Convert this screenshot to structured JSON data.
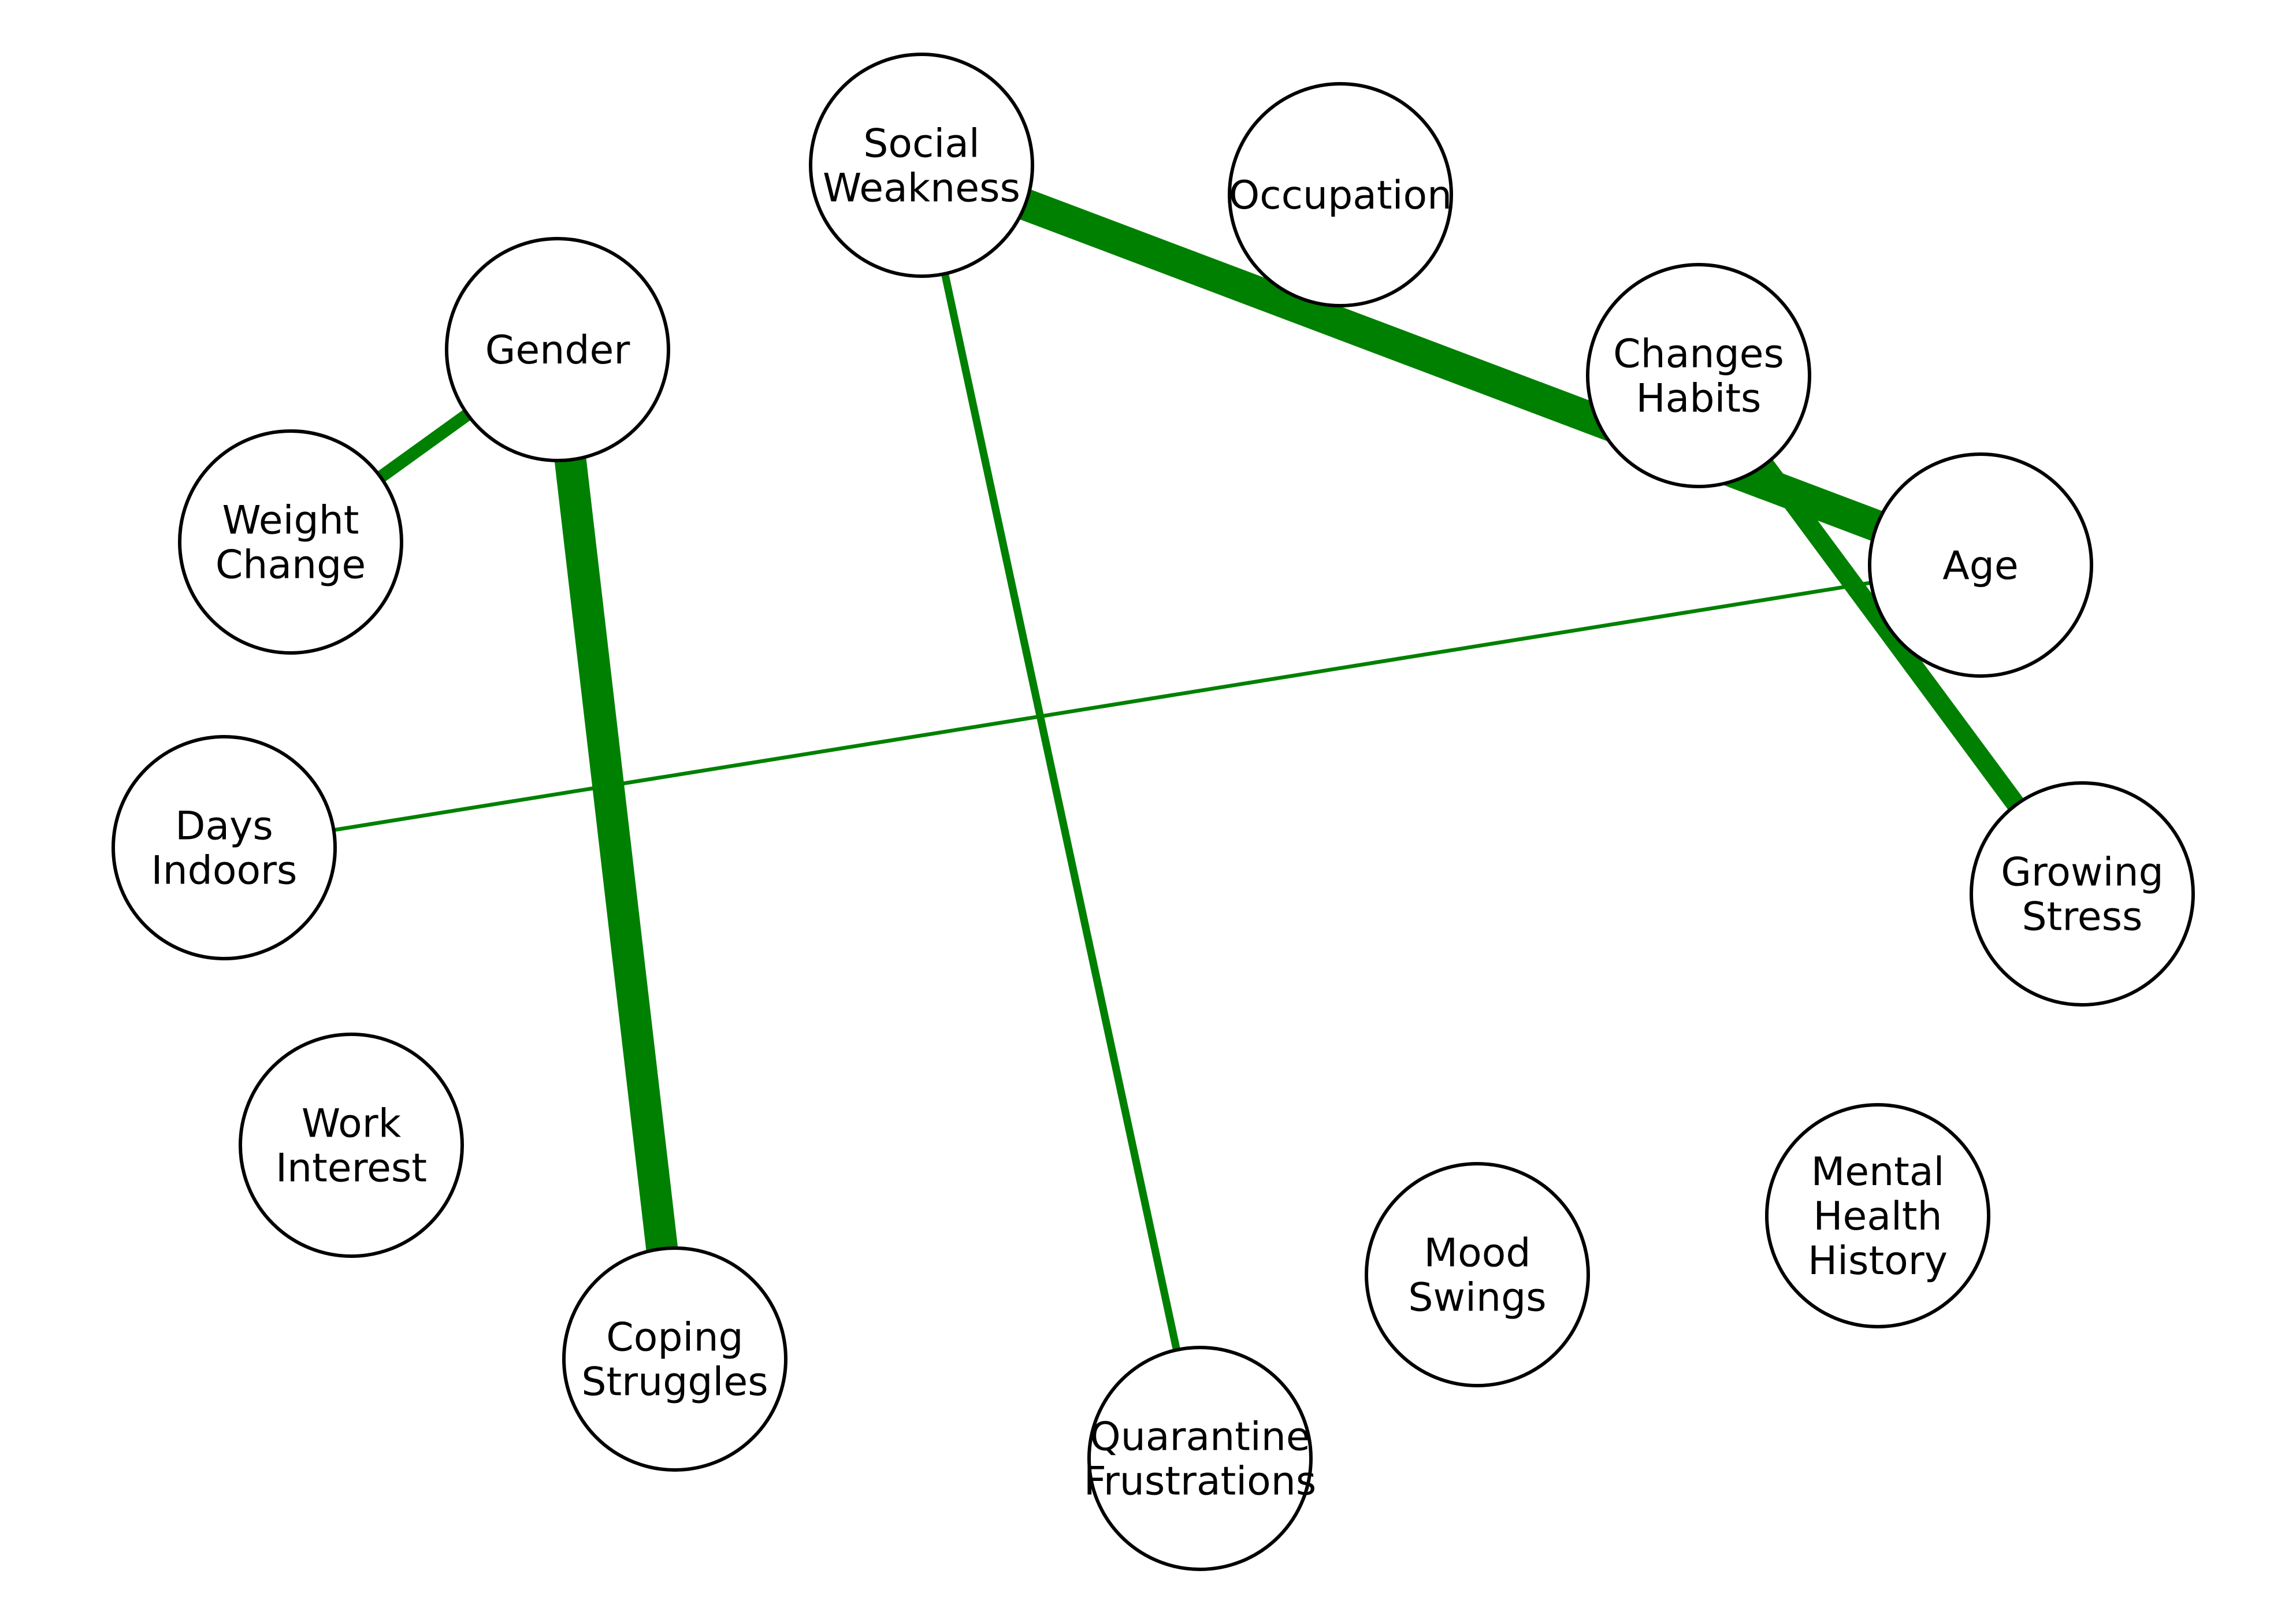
{
  "graph": {
    "edge_color": "#008000",
    "node_fill": "#ffffff",
    "node_stroke": "#000000",
    "nodes": [
      {
        "id": "social_weakness",
        "lines": [
          "Social",
          "Weakness"
        ]
      },
      {
        "id": "occupation",
        "lines": [
          "Occupation"
        ]
      },
      {
        "id": "gender",
        "lines": [
          "Gender"
        ]
      },
      {
        "id": "changes_habits",
        "lines": [
          "Changes",
          "Habits"
        ]
      },
      {
        "id": "weight_change",
        "lines": [
          "Weight",
          "Change"
        ]
      },
      {
        "id": "age",
        "lines": [
          "Age"
        ]
      },
      {
        "id": "days_indoors",
        "lines": [
          "Days",
          "Indoors"
        ]
      },
      {
        "id": "growing_stress",
        "lines": [
          "Growing",
          "Stress"
        ]
      },
      {
        "id": "work_interest",
        "lines": [
          "Work",
          "Interest"
        ]
      },
      {
        "id": "mental_health_history",
        "lines": [
          "Mental",
          "Health",
          "History"
        ]
      },
      {
        "id": "mood_swings",
        "lines": [
          "Mood",
          "Swings"
        ]
      },
      {
        "id": "coping_struggles",
        "lines": [
          "Coping",
          "Struggles"
        ]
      },
      {
        "id": "quarantine_frustrations",
        "lines": [
          "Quarantine",
          "Frustrations"
        ]
      }
    ],
    "edges": [
      {
        "source": "social_weakness",
        "target": "age",
        "weight": 5
      },
      {
        "source": "gender",
        "target": "coping_struggles",
        "weight": 5
      },
      {
        "source": "changes_habits",
        "target": "growing_stress",
        "weight": 3
      },
      {
        "source": "gender",
        "target": "weight_change",
        "weight": 2
      },
      {
        "source": "social_weakness",
        "target": "quarantine_frustrations",
        "weight": 1.2
      },
      {
        "source": "days_indoors",
        "target": "age",
        "weight": 0.6
      }
    ]
  }
}
